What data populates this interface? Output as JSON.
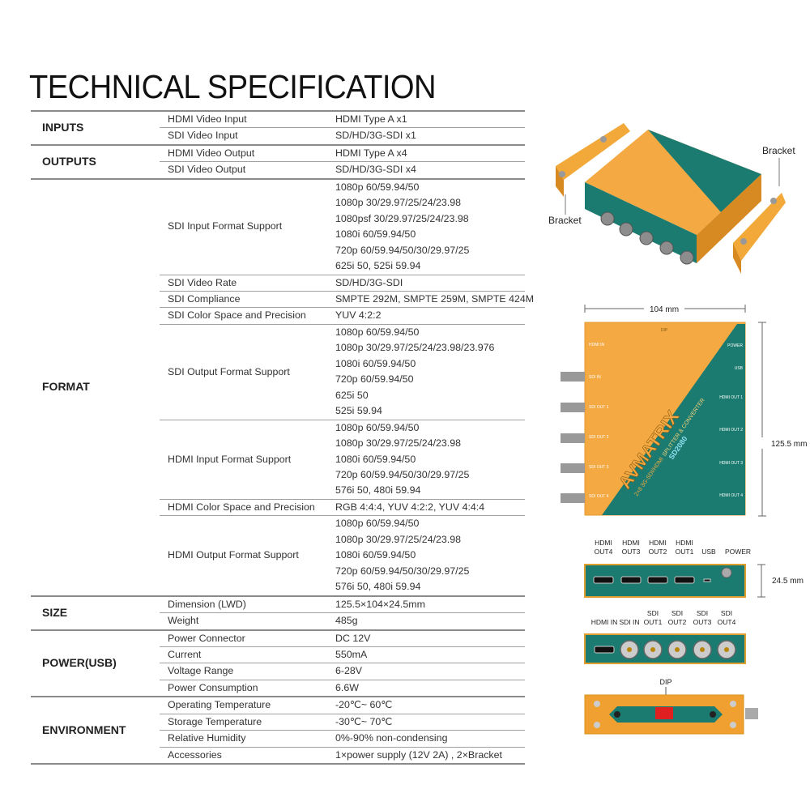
{
  "title": "TECHNICAL SPECIFICATION",
  "sections": [
    {
      "name": "INPUTS",
      "params": [
        {
          "label": "HDMI Video Input",
          "values": [
            "HDMI Type A x1"
          ]
        },
        {
          "label": "SDI Video Input",
          "values": [
            "SD/HD/3G-SDI x1"
          ]
        }
      ]
    },
    {
      "name": "OUTPUTS",
      "params": [
        {
          "label": "HDMI Video Output",
          "values": [
            "HDMI Type A x4"
          ]
        },
        {
          "label": "SDI Video Output",
          "values": [
            "SD/HD/3G-SDI x4"
          ]
        }
      ]
    },
    {
      "name": "FORMAT",
      "params": [
        {
          "label": "SDI Input Format Support",
          "values": [
            "1080p 60/59.94/50",
            "1080p 30/29.97/25/24/23.98",
            "1080psf 30/29.97/25/24/23.98",
            "1080i 60/59.94/50",
            "720p 60/59.94/50/30/29.97/25",
            "625i 50, 525i 59.94"
          ]
        },
        {
          "label": "SDI Video Rate",
          "values": [
            "SD/HD/3G-SDI"
          ]
        },
        {
          "label": "SDI Compliance",
          "values": [
            "SMPTE 292M, SMPTE 259M, SMPTE 424M"
          ]
        },
        {
          "label": "SDI Color Space and Precision",
          "values": [
            "YUV 4:2:2"
          ]
        },
        {
          "label": "SDI Output Format Support",
          "values": [
            "1080p 60/59.94/50",
            "1080p 30/29.97/25/24/23.98/23.976",
            "1080i 60/59.94/50",
            "720p 60/59.94/50",
            "625i 50",
            "525i 59.94"
          ]
        },
        {
          "label": "HDMI Input Format Support",
          "values": [
            "1080p 60/59.94/50",
            "1080p 30/29.97/25/24/23.98",
            "1080i 60/59.94/50",
            "720p 60/59.94/50/30/29.97/25",
            "576i 50, 480i 59.94"
          ]
        },
        {
          "label": "HDMI Color Space and Precision",
          "values": [
            "RGB 4:4:4, YUV 4:2:2, YUV 4:4:4"
          ]
        },
        {
          "label": "HDMI Output Format Support",
          "values": [
            "1080p 60/59.94/50",
            "1080p 30/29.97/25/24/23.98",
            "1080i 60/59.94/50",
            "720p 60/59.94/50/30/29.97/25",
            "576i 50, 480i 59.94"
          ]
        }
      ]
    },
    {
      "name": "SIZE",
      "params": [
        {
          "label": "Dimension (LWD)",
          "values": [
            "125.5×104×24.5mm"
          ]
        },
        {
          "label": "Weight",
          "values": [
            "485g"
          ]
        }
      ]
    },
    {
      "name": "POWER(USB)",
      "params": [
        {
          "label": "Power Connector",
          "values": [
            "DC 12V"
          ]
        },
        {
          "label": "Current",
          "values": [
            "550mA"
          ]
        },
        {
          "label": "Voltage Range",
          "values": [
            "6-28V"
          ]
        },
        {
          "label": "Power Consumption",
          "values": [
            "6.6W"
          ]
        }
      ]
    },
    {
      "name": "ENVIRONMENT",
      "params": [
        {
          "label": "Operating Temperature",
          "values": [
            "-20℃~ 60℃"
          ]
        },
        {
          "label": "Storage Temperature",
          "values": [
            "-30℃~ 70℃"
          ]
        },
        {
          "label": "Relative Humidity",
          "values": [
            "0%-90% non-condensing"
          ]
        },
        {
          "label": "Accessories",
          "values": [
            "1×power supply (12V 2A) , 2×Bracket"
          ]
        }
      ]
    }
  ],
  "product_photo": {
    "bracket_right": "Bracket",
    "bracket_left": "Bracket"
  },
  "top_view": {
    "width_dim": "104 mm",
    "height_dim": "125.5 mm",
    "dip": "DIP",
    "left_labels": [
      "HDMI IN",
      "SDI IN",
      "SDI OUT 1",
      "SDI OUT 2",
      "SDI OUT 3",
      "SDI OUT 4"
    ],
    "right_labels": [
      "POWER",
      "USB",
      "HDMI OUT 1",
      "HDMI OUT 2",
      "HDMI OUT 3",
      "HDMI OUT 4"
    ],
    "brand": "AVMATRIX",
    "subtitle_a": "2×8 3G-SDI/HDMI",
    "subtitle_b": "SPLITTER & CONVERTER",
    "model": "SD2080"
  },
  "back_panel": {
    "labels": [
      [
        "HDMI",
        "OUT4"
      ],
      [
        "HDMI",
        "OUT3"
      ],
      [
        "HDMI",
        "OUT2"
      ],
      [
        "HDMI",
        "OUT1"
      ],
      [
        "USB"
      ],
      [
        "POWER"
      ]
    ],
    "depth_dim": "24.5 mm"
  },
  "front_panel": {
    "labels": [
      [
        "HDMI IN"
      ],
      [
        "SDI IN"
      ],
      [
        "SDI",
        "OUT1"
      ],
      [
        "SDI",
        "OUT2"
      ],
      [
        "SDI",
        "OUT3"
      ],
      [
        "SDI",
        "OUT4"
      ]
    ]
  },
  "bottom_view": {
    "dip": "DIP"
  },
  "colors": {
    "orange": "#f4a942",
    "teal": "#1b7b70",
    "rule": "#8a8a8a"
  }
}
